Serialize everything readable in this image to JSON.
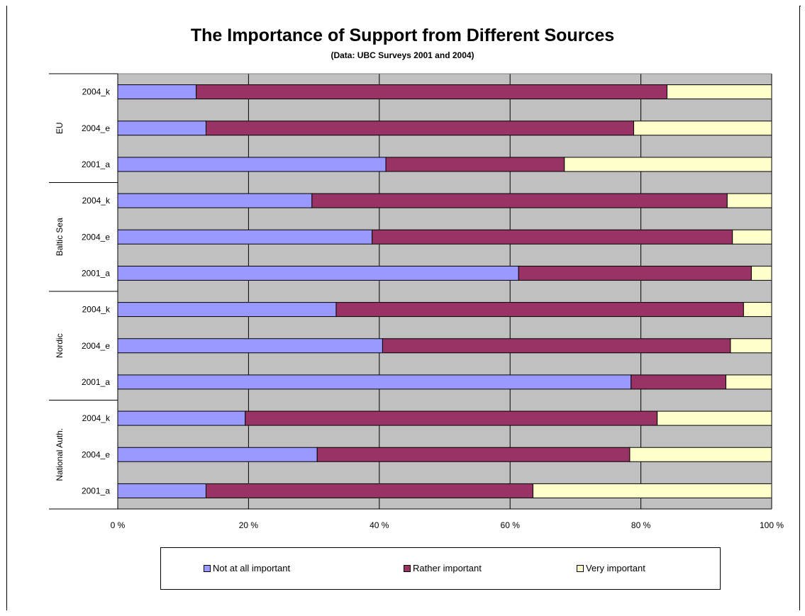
{
  "chart_data": {
    "type": "bar",
    "orientation": "horizontal",
    "stacked": "percent",
    "title": "The Importance of Support from Different Sources",
    "subtitle": "(Data: UBC Surveys 2001 and 2004)",
    "xlim": [
      0,
      100
    ],
    "x_ticks": [
      "0 %",
      "20 %",
      "40 %",
      "60 %",
      "80 %",
      "100 %"
    ],
    "grid": true,
    "legend_position": "bottom",
    "groups": [
      {
        "name": "EU",
        "categories": [
          "2004_k",
          "2004_e",
          "2001_a"
        ]
      },
      {
        "name": "Baltic Sea",
        "categories": [
          "2004_k",
          "2004_e",
          "2001_a"
        ]
      },
      {
        "name": "Nordic",
        "categories": [
          "2004_k",
          "2004_e",
          "2001_a"
        ]
      },
      {
        "name": "National Auth.",
        "categories": [
          "2004_k",
          "2004_e",
          "2001_a"
        ]
      }
    ],
    "series": [
      {
        "name": "Not at all important",
        "color": "#9999ff",
        "values": [
          12,
          13.5,
          41,
          29.7,
          38.9,
          61.3,
          33.4,
          40.5,
          78.5,
          19.5,
          30.5,
          13.5
        ]
      },
      {
        "name": "Rather important",
        "color": "#993366",
        "values": [
          72,
          65.4,
          27.3,
          63.5,
          55.1,
          35.6,
          62.3,
          53.2,
          14.5,
          63,
          47.8,
          50
        ]
      },
      {
        "name": "Very important",
        "color": "#ffffcc",
        "values": [
          16,
          21.1,
          31.7,
          6.8,
          6,
          3.1,
          4.3,
          6.3,
          7,
          17.5,
          21.7,
          36.5
        ]
      }
    ]
  }
}
